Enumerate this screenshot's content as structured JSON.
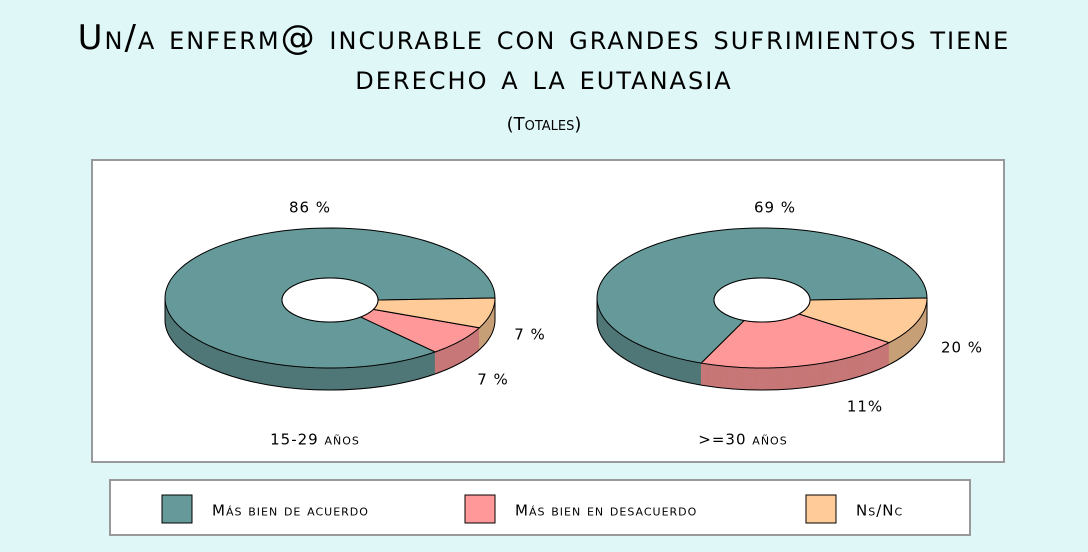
{
  "title": "Un/a enferm@ incurable con grandes sufrimientos tiene derecho a la eutanasia",
  "subtitle": "(Totales)",
  "legend": {
    "categories": [
      "Más bien de acuerdo",
      "Más bien en desacuerdo",
      "Ns/Nc"
    ],
    "colors": [
      "#669999",
      "#ff9999",
      "#ffcc99"
    ]
  },
  "chart_data": [
    {
      "type": "pie",
      "label": "15-29 años",
      "values": [
        86,
        7,
        7
      ],
      "value_labels": [
        "86 %",
        "7 %",
        "7 %"
      ]
    },
    {
      "type": "pie",
      "label": ">=30 años",
      "values": [
        69,
        20,
        11
      ],
      "value_labels": [
        "69 %",
        "20 %",
        "11%"
      ]
    }
  ]
}
